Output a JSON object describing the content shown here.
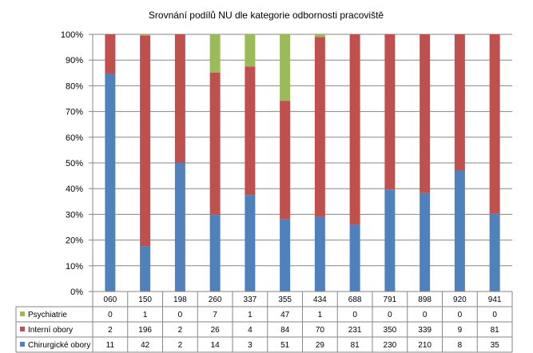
{
  "chart_data": {
    "type": "bar",
    "stacked": "percent",
    "title": "Srovnání podílů NU  dle kategorie odbornosti pracoviště",
    "categories": [
      "060",
      "150",
      "198",
      "260",
      "337",
      "355",
      "434",
      "688",
      "791",
      "898",
      "920",
      "941"
    ],
    "series": [
      {
        "name": "Chirurgické obory",
        "color": "#4f81bd",
        "values": [
          11,
          42,
          2,
          14,
          3,
          51,
          29,
          81,
          230,
          210,
          8,
          35
        ]
      },
      {
        "name": "Interní obory",
        "color": "#c0504d",
        "values": [
          2,
          196,
          2,
          26,
          4,
          84,
          70,
          231,
          350,
          339,
          9,
          81
        ]
      },
      {
        "name": "Psychiatrie",
        "color": "#9bbb59",
        "values": [
          0,
          1,
          0,
          7,
          1,
          47,
          1,
          0,
          0,
          0,
          0,
          0
        ]
      }
    ],
    "ylim": [
      0,
      100
    ],
    "y_ticks": [
      "0%",
      "10%",
      "20%",
      "30%",
      "40%",
      "50%",
      "60%",
      "70%",
      "80%",
      "90%",
      "100%"
    ],
    "grid": true,
    "legend": "data-table"
  }
}
